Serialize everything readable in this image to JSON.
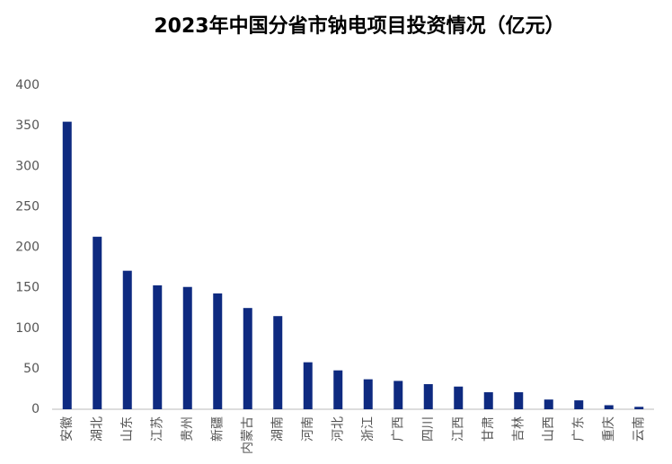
{
  "chart_data": {
    "type": "bar",
    "title": "2023年中国分省市钠电项目投资情况（亿元）",
    "categories": [
      "安徽",
      "湖北",
      "山东",
      "江苏",
      "贵州",
      "新疆",
      "内蒙古",
      "湖南",
      "河南",
      "河北",
      "浙江",
      "广西",
      "四川",
      "江西",
      "甘肃",
      "吉林",
      "山西",
      "广东",
      "重庆",
      "云南"
    ],
    "values": [
      355,
      213,
      171,
      153,
      151,
      143,
      125,
      115,
      58,
      48,
      37,
      35,
      31,
      28,
      21,
      21,
      12,
      11,
      5,
      3
    ],
    "color": "#0e2a80",
    "ylim": [
      0,
      400
    ],
    "yticks": [
      0,
      50,
      100,
      150,
      200,
      250,
      300,
      350,
      400
    ],
    "grid": false
  }
}
